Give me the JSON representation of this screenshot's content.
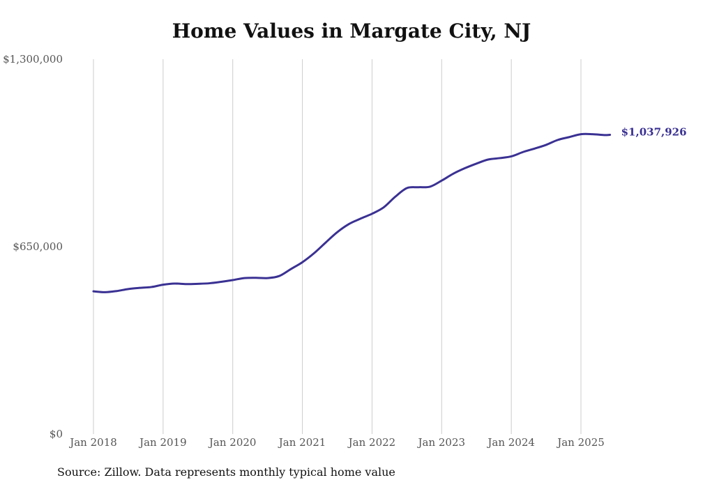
{
  "chart_data": {
    "type": "line",
    "title": "Home Values in Margate City, NJ",
    "source_note": "Source: Zillow. Data represents monthly typical home value",
    "xlabel": "",
    "ylabel": "",
    "ylim": [
      0,
      1300000
    ],
    "y_ticks": [
      {
        "value": 0,
        "label": "$0"
      },
      {
        "value": 650000,
        "label": "$650,000"
      },
      {
        "value": 1300000,
        "label": "$1,300,000"
      }
    ],
    "x_ticks": [
      {
        "value": 2018.0,
        "label": "Jan 2018"
      },
      {
        "value": 2019.0,
        "label": "Jan 2019"
      },
      {
        "value": 2020.0,
        "label": "Jan 2020"
      },
      {
        "value": 2021.0,
        "label": "Jan 2021"
      },
      {
        "value": 2022.0,
        "label": "Jan 2022"
      },
      {
        "value": 2023.0,
        "label": "Jan 2023"
      },
      {
        "value": 2024.0,
        "label": "Jan 2024"
      },
      {
        "value": 2025.0,
        "label": "Jan 2025"
      }
    ],
    "grid": "vertical at x ticks",
    "line_color": "#3a3193",
    "end_label": "$1,037,926",
    "series": [
      {
        "x": [
          "2018-01",
          "2018-03",
          "2018-05",
          "2018-07",
          "2018-09",
          "2018-11",
          "2019-01",
          "2019-03",
          "2019-05",
          "2019-07",
          "2019-09",
          "2019-11",
          "2020-01",
          "2020-03",
          "2020-05",
          "2020-07",
          "2020-09",
          "2020-11",
          "2021-01",
          "2021-03",
          "2021-05",
          "2021-07",
          "2021-09",
          "2021-11",
          "2022-01",
          "2022-03",
          "2022-05",
          "2022-07",
          "2022-09",
          "2022-11",
          "2023-01",
          "2023-03",
          "2023-05",
          "2023-07",
          "2023-09",
          "2023-11",
          "2024-01",
          "2024-03",
          "2024-05",
          "2024-07",
          "2024-09",
          "2024-11",
          "2025-01",
          "2025-03",
          "2025-05",
          "2025-06"
        ],
        "values": [
          495000,
          492000,
          496000,
          503000,
          507000,
          510000,
          518000,
          522000,
          520000,
          521000,
          523000,
          528000,
          534000,
          541000,
          542000,
          541000,
          548000,
          572000,
          596000,
          627000,
          664000,
          700000,
          728000,
          747000,
          764000,
          786000,
          823000,
          853000,
          856000,
          858000,
          879000,
          903000,
          922000,
          938000,
          952000,
          957000,
          963000,
          978000,
          990000,
          1003000,
          1020000,
          1030000,
          1040000,
          1040000,
          1037000,
          1037926
        ]
      }
    ]
  }
}
